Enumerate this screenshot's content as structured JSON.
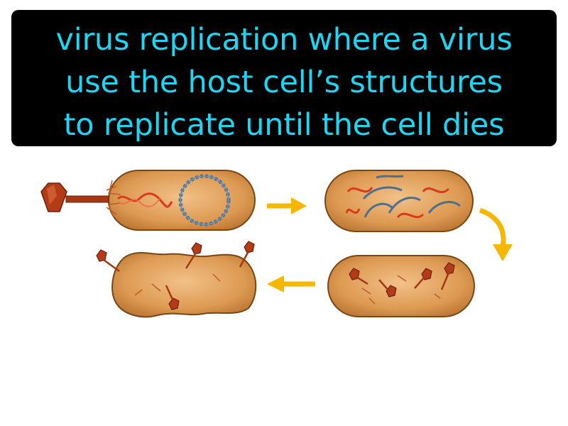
{
  "caption": {
    "lines": [
      "virus replication where a virus",
      "use the host cell’s structures",
      "to replicate until the cell dies"
    ]
  },
  "colors": {
    "caption_background": "#000000",
    "caption_text": "#1fd6f2",
    "cell_fill": "#e0a158",
    "cell_outline": "#7a4612",
    "arrow": "#f5b700",
    "viral_dna": "#d93a1c",
    "host_dna": "#4c6f92",
    "phage": "#b33c17"
  },
  "stages": [
    {
      "name": "attachment-and-injection"
    },
    {
      "name": "dna-replication"
    },
    {
      "name": "phage-assembly"
    },
    {
      "name": "lysis"
    }
  ]
}
